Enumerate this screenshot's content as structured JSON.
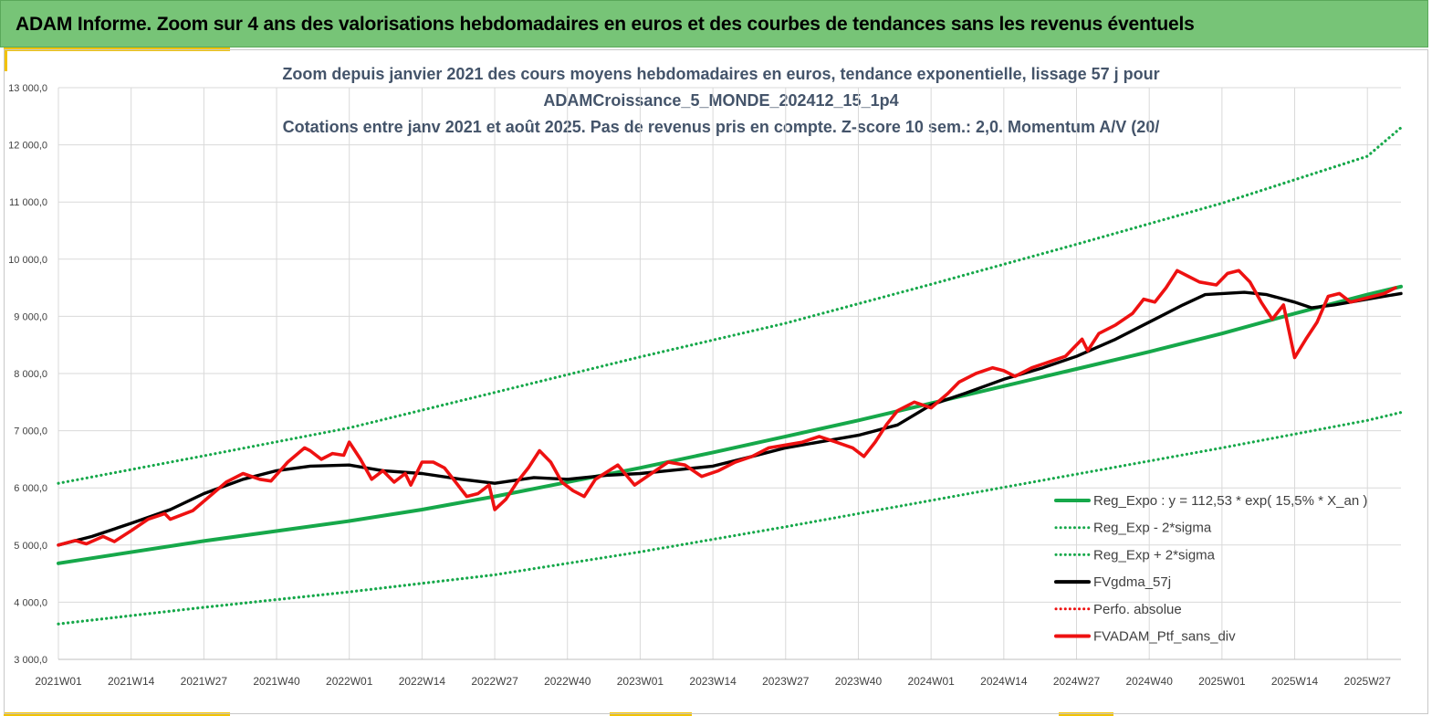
{
  "banner": {
    "title": "ADAM Informe. Zoom sur 4 ans des valorisations hebdomadaires en euros et des courbes de tendances sans les revenus éventuels"
  },
  "colors": {
    "banner_bg": "#77c477",
    "accent": "#f2c200",
    "trend": "#16a84a",
    "gdma": "#000000",
    "portfolio": "#ee1111",
    "title_text": "#44546a"
  },
  "chart_data": {
    "type": "line",
    "title_lines": [
      "Zoom depuis janvier 2021 des cours moyens hebdomadaires  en euros, tendance exponentielle, lissage 57 j pour",
      "ADAMCroissance_5_MONDE_202412_15_1p4",
      "Cotations entre janv 2021 et août 2025. Pas de revenus pris en compte. Z-score 10 sem.: 2,0. Momentum A/V (20/"
    ],
    "ylim": [
      3000,
      13000
    ],
    "y_ticks": [
      "3 000,0",
      "4 000,0",
      "5 000,0",
      "6 000,0",
      "7 000,0",
      "8 000,0",
      "9 000,0",
      "10 000,0",
      "11 000,0",
      "12 000,0",
      "13 000,0"
    ],
    "x_ticks": [
      {
        "label": "2021W01",
        "week": 0
      },
      {
        "label": "2021W14",
        "week": 13
      },
      {
        "label": "2021W27",
        "week": 26
      },
      {
        "label": "2021W40",
        "week": 39
      },
      {
        "label": "2022W01",
        "week": 52
      },
      {
        "label": "2022W14",
        "week": 65
      },
      {
        "label": "2022W27",
        "week": 78
      },
      {
        "label": "2022W40",
        "week": 91
      },
      {
        "label": "2023W01",
        "week": 104
      },
      {
        "label": "2023W14",
        "week": 117
      },
      {
        "label": "2023W27",
        "week": 130
      },
      {
        "label": "2023W40",
        "week": 143
      },
      {
        "label": "2024W01",
        "week": 156
      },
      {
        "label": "2024W14",
        "week": 169
      },
      {
        "label": "2024W27",
        "week": 182
      },
      {
        "label": "2024W40",
        "week": 195
      },
      {
        "label": "2025W01",
        "week": 208
      },
      {
        "label": "2025W14",
        "week": 221
      },
      {
        "label": "2025W27",
        "week": 234
      }
    ],
    "x_range_weeks": [
      0,
      240
    ],
    "grid": true,
    "legend_position": "bottom-right",
    "legend": [
      {
        "label": "Reg_Expo : y = 112,53 * exp( 15,5% *  X_an )",
        "style": "solid",
        "color": "#16a84a"
      },
      {
        "label": "Reg_Exp - 2*sigma",
        "style": "dotted",
        "color": "#16a84a"
      },
      {
        "label": "Reg_Exp + 2*sigma",
        "style": "dotted",
        "color": "#16a84a"
      },
      {
        "label": "FVgdma_57j",
        "style": "solid",
        "color": "#000000"
      },
      {
        "label": "Perfo. absolue",
        "style": "dotted",
        "color": "#ee1111"
      },
      {
        "label": "FVADAM_Ptf_sans_div",
        "style": "solid",
        "color": "#ee1111"
      }
    ],
    "series": [
      {
        "name": "Reg_Expo : y = 112,53 * exp( 15,5% *  X_an )",
        "style": "solid",
        "color": "#16a84a",
        "points": [
          [
            0,
            4680
          ],
          [
            26,
            5070
          ],
          [
            52,
            5420
          ],
          [
            65,
            5620
          ],
          [
            78,
            5850
          ],
          [
            91,
            6100
          ],
          [
            104,
            6350
          ],
          [
            117,
            6620
          ],
          [
            130,
            6900
          ],
          [
            143,
            7180
          ],
          [
            156,
            7480
          ],
          [
            169,
            7780
          ],
          [
            182,
            8080
          ],
          [
            195,
            8380
          ],
          [
            208,
            8700
          ],
          [
            221,
            9050
          ],
          [
            234,
            9380
          ],
          [
            240,
            9520
          ]
        ]
      },
      {
        "name": "Reg_Exp - 2*sigma",
        "style": "dotted",
        "color": "#16a84a",
        "points": [
          [
            0,
            3620
          ],
          [
            26,
            3910
          ],
          [
            52,
            4180
          ],
          [
            78,
            4480
          ],
          [
            104,
            4880
          ],
          [
            130,
            5320
          ],
          [
            156,
            5780
          ],
          [
            182,
            6240
          ],
          [
            208,
            6700
          ],
          [
            234,
            7180
          ],
          [
            240,
            7320
          ]
        ]
      },
      {
        "name": "Reg_Exp + 2*sigma",
        "style": "dotted",
        "color": "#16a84a",
        "points": [
          [
            0,
            6080
          ],
          [
            26,
            6560
          ],
          [
            52,
            7050
          ],
          [
            78,
            7670
          ],
          [
            104,
            8290
          ],
          [
            130,
            8880
          ],
          [
            156,
            9560
          ],
          [
            182,
            10260
          ],
          [
            208,
            10980
          ],
          [
            234,
            11800
          ],
          [
            240,
            12300
          ]
        ]
      },
      {
        "name": "FVgdma_57j",
        "style": "solid",
        "color": "#000000",
        "points": [
          [
            0,
            5000
          ],
          [
            6,
            5150
          ],
          [
            13,
            5380
          ],
          [
            20,
            5620
          ],
          [
            26,
            5900
          ],
          [
            33,
            6150
          ],
          [
            39,
            6300
          ],
          [
            45,
            6380
          ],
          [
            52,
            6400
          ],
          [
            58,
            6300
          ],
          [
            65,
            6250
          ],
          [
            72,
            6150
          ],
          [
            78,
            6080
          ],
          [
            85,
            6180
          ],
          [
            91,
            6150
          ],
          [
            98,
            6220
          ],
          [
            104,
            6250
          ],
          [
            111,
            6320
          ],
          [
            117,
            6380
          ],
          [
            124,
            6550
          ],
          [
            130,
            6700
          ],
          [
            137,
            6820
          ],
          [
            143,
            6920
          ],
          [
            150,
            7100
          ],
          [
            156,
            7450
          ],
          [
            162,
            7650
          ],
          [
            169,
            7900
          ],
          [
            176,
            8100
          ],
          [
            182,
            8300
          ],
          [
            189,
            8600
          ],
          [
            195,
            8900
          ],
          [
            201,
            9200
          ],
          [
            205,
            9380
          ],
          [
            212,
            9420
          ],
          [
            216,
            9380
          ],
          [
            221,
            9250
          ],
          [
            224,
            9150
          ],
          [
            228,
            9200
          ],
          [
            234,
            9300
          ],
          [
            240,
            9400
          ]
        ]
      },
      {
        "name": "FVADAM_Ptf_sans_div",
        "style": "solid",
        "color": "#ee1111",
        "points": [
          [
            0,
            5000
          ],
          [
            3,
            5080
          ],
          [
            5,
            5020
          ],
          [
            8,
            5150
          ],
          [
            10,
            5060
          ],
          [
            13,
            5250
          ],
          [
            16,
            5450
          ],
          [
            19,
            5550
          ],
          [
            20,
            5450
          ],
          [
            24,
            5600
          ],
          [
            27,
            5850
          ],
          [
            30,
            6100
          ],
          [
            33,
            6250
          ],
          [
            36,
            6150
          ],
          [
            38,
            6120
          ],
          [
            41,
            6450
          ],
          [
            44,
            6700
          ],
          [
            45,
            6650
          ],
          [
            47,
            6500
          ],
          [
            49,
            6600
          ],
          [
            51,
            6570
          ],
          [
            52,
            6800
          ],
          [
            54,
            6500
          ],
          [
            56,
            6150
          ],
          [
            58,
            6300
          ],
          [
            60,
            6100
          ],
          [
            62,
            6250
          ],
          [
            63,
            6050
          ],
          [
            65,
            6450
          ],
          [
            67,
            6450
          ],
          [
            69,
            6350
          ],
          [
            71,
            6100
          ],
          [
            73,
            5850
          ],
          [
            75,
            5900
          ],
          [
            77,
            6050
          ],
          [
            78,
            5620
          ],
          [
            80,
            5800
          ],
          [
            82,
            6100
          ],
          [
            84,
            6350
          ],
          [
            86,
            6650
          ],
          [
            88,
            6450
          ],
          [
            90,
            6100
          ],
          [
            92,
            5950
          ],
          [
            94,
            5850
          ],
          [
            96,
            6150
          ],
          [
            100,
            6400
          ],
          [
            103,
            6050
          ],
          [
            106,
            6250
          ],
          [
            109,
            6450
          ],
          [
            112,
            6400
          ],
          [
            115,
            6200
          ],
          [
            118,
            6300
          ],
          [
            121,
            6450
          ],
          [
            124,
            6550
          ],
          [
            127,
            6700
          ],
          [
            130,
            6750
          ],
          [
            133,
            6800
          ],
          [
            136,
            6900
          ],
          [
            139,
            6800
          ],
          [
            142,
            6700
          ],
          [
            144,
            6550
          ],
          [
            146,
            6800
          ],
          [
            148,
            7100
          ],
          [
            150,
            7350
          ],
          [
            153,
            7500
          ],
          [
            156,
            7400
          ],
          [
            159,
            7650
          ],
          [
            161,
            7850
          ],
          [
            164,
            8000
          ],
          [
            167,
            8100
          ],
          [
            169,
            8050
          ],
          [
            171,
            7950
          ],
          [
            174,
            8100
          ],
          [
            177,
            8200
          ],
          [
            180,
            8300
          ],
          [
            183,
            8600
          ],
          [
            184,
            8400
          ],
          [
            186,
            8700
          ],
          [
            189,
            8850
          ],
          [
            192,
            9050
          ],
          [
            194,
            9300
          ],
          [
            196,
            9250
          ],
          [
            198,
            9500
          ],
          [
            200,
            9800
          ],
          [
            202,
            9700
          ],
          [
            204,
            9600
          ],
          [
            207,
            9550
          ],
          [
            209,
            9750
          ],
          [
            211,
            9800
          ],
          [
            213,
            9600
          ],
          [
            215,
            9250
          ],
          [
            217,
            8950
          ],
          [
            219,
            9200
          ],
          [
            221,
            8280
          ],
          [
            223,
            8600
          ],
          [
            225,
            8900
          ],
          [
            227,
            9350
          ],
          [
            229,
            9400
          ],
          [
            231,
            9250
          ],
          [
            233,
            9300
          ],
          [
            235,
            9350
          ],
          [
            237,
            9400
          ],
          [
            239,
            9500
          ]
        ]
      },
      {
        "name": "Perfo. absolue",
        "style": "dotted",
        "color": "#ee1111",
        "points": []
      }
    ]
  }
}
